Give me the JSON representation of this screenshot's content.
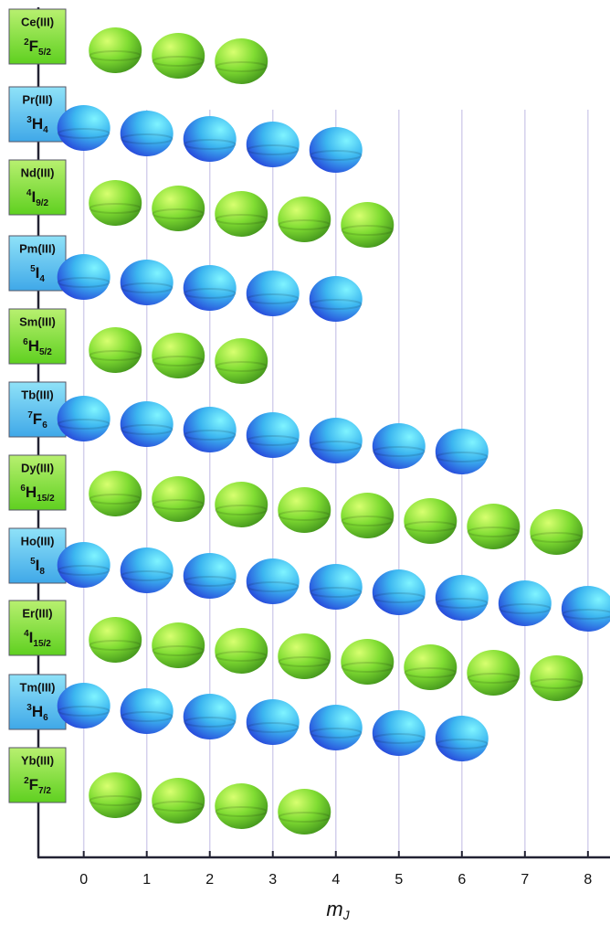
{
  "chart_data": {
    "type": "orbital",
    "xlabel": {
      "main": "m",
      "sub": "J"
    },
    "xlim": [
      -0.72,
      8.35
    ],
    "xticks": [
      0,
      1,
      2,
      3,
      4,
      5,
      6,
      7,
      8
    ],
    "grid": true,
    "rows": [
      {
        "ion": "Ce(III)",
        "term": {
          "mult": "2",
          "L": "F",
          "J": "5/2"
        },
        "color": "green",
        "mj": [
          0.5,
          1.5,
          2.5
        ]
      },
      {
        "ion": "Pr(III)",
        "term": {
          "mult": "3",
          "L": "H",
          "J": "4"
        },
        "color": "blue",
        "mj": [
          0,
          1,
          2,
          3,
          4
        ]
      },
      {
        "ion": "Nd(III)",
        "term": {
          "mult": "4",
          "L": "I",
          "J": "9/2"
        },
        "color": "green",
        "mj": [
          0.5,
          1.5,
          2.5,
          3.5,
          4.5
        ]
      },
      {
        "ion": "Pm(III)",
        "term": {
          "mult": "5",
          "L": "I",
          "J": "4"
        },
        "color": "blue",
        "mj": [
          0,
          1,
          2,
          3,
          4
        ]
      },
      {
        "ion": "Sm(III)",
        "term": {
          "mult": "6",
          "L": "H",
          "J": "5/2"
        },
        "color": "green",
        "mj": [
          0.5,
          1.5,
          2.5
        ]
      },
      {
        "ion": "Tb(III)",
        "term": {
          "mult": "7",
          "L": "F",
          "J": "6"
        },
        "color": "blue",
        "mj": [
          0,
          1,
          2,
          3,
          4,
          5,
          6
        ]
      },
      {
        "ion": "Dy(III)",
        "term": {
          "mult": "6",
          "L": "H",
          "J": "15/2"
        },
        "color": "green",
        "mj": [
          0.5,
          1.5,
          2.5,
          3.5,
          4.5,
          5.5,
          6.5,
          7.5
        ]
      },
      {
        "ion": "Ho(III)",
        "term": {
          "mult": "5",
          "L": "I",
          "J": "8"
        },
        "color": "blue",
        "mj": [
          0,
          1,
          2,
          3,
          4,
          5,
          6,
          7,
          8
        ]
      },
      {
        "ion": "Er(III)",
        "term": {
          "mult": "4",
          "L": "I",
          "J": "15/2"
        },
        "color": "green",
        "mj": [
          0.5,
          1.5,
          2.5,
          3.5,
          4.5,
          5.5,
          6.5,
          7.5
        ]
      },
      {
        "ion": "Tm(III)",
        "term": {
          "mult": "3",
          "L": "H",
          "J": "6"
        },
        "color": "blue",
        "mj": [
          0,
          1,
          2,
          3,
          4,
          5,
          6
        ]
      },
      {
        "ion": "Yb(III)",
        "term": {
          "mult": "2",
          "L": "F",
          "J": "7/2"
        },
        "color": "green",
        "mj": [
          0.5,
          1.5,
          2.5,
          3.5
        ]
      }
    ]
  }
}
